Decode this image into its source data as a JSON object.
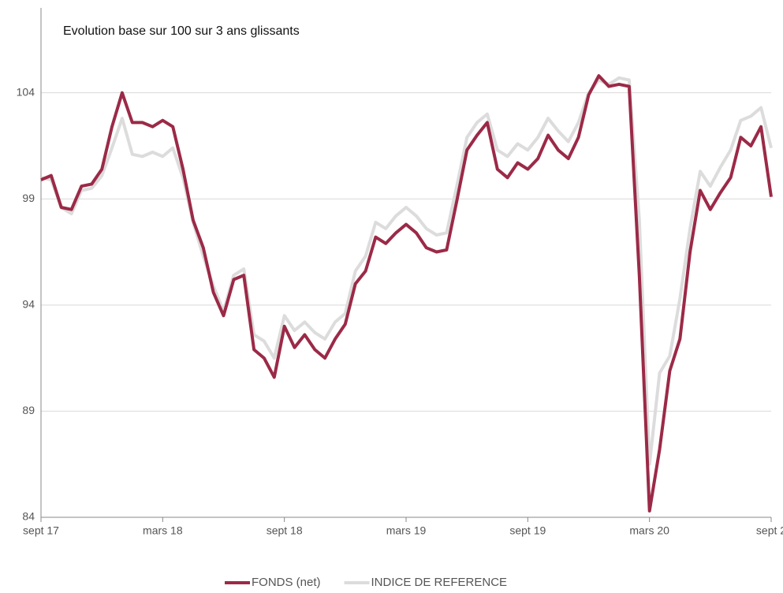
{
  "chart_data": {
    "type": "line",
    "title": "Evolution base sur 100 sur 3 ans glissants",
    "x": [
      0,
      0.5,
      1,
      1.5,
      2,
      2.5,
      3,
      3.5,
      4,
      4.5,
      5,
      5.5,
      6,
      6.5,
      7,
      7.5,
      8,
      8.5,
      9,
      9.5,
      10,
      10.5,
      11,
      11.5,
      12,
      12.5,
      13,
      13.5,
      14,
      14.5,
      15,
      15.5,
      16,
      16.5,
      17,
      17.5,
      18,
      18.5,
      19,
      19.5,
      20,
      20.5,
      21,
      21.5,
      22,
      22.5,
      23,
      23.5,
      24,
      24.5,
      25,
      25.5,
      26,
      26.5,
      27,
      27.5,
      28,
      28.5,
      29,
      29.5,
      30,
      30.5,
      31,
      31.5,
      32,
      32.5,
      33,
      33.5,
      34,
      34.5,
      35,
      35.5,
      36
    ],
    "xlim": [
      0,
      36
    ],
    "xticks": [
      {
        "value": 0,
        "label": "sept 17"
      },
      {
        "value": 6,
        "label": "mars 18"
      },
      {
        "value": 12,
        "label": "sept 18"
      },
      {
        "value": 18,
        "label": "mars 19"
      },
      {
        "value": 24,
        "label": "sept 19"
      },
      {
        "value": 30,
        "label": "mars 20"
      },
      {
        "value": 36,
        "label": "sept 2"
      }
    ],
    "ylim": [
      84,
      108
    ],
    "yticks": [
      84,
      89,
      94,
      99,
      104
    ],
    "grid": true,
    "legend": "bottom",
    "series": [
      {
        "name": "INDICE DE REFERENCE",
        "color": "#dcdcdc",
        "values": [
          100.0,
          99.9,
          98.6,
          98.3,
          99.4,
          99.5,
          100.1,
          101.4,
          102.8,
          101.1,
          101.0,
          101.2,
          101.0,
          101.4,
          100.0,
          97.9,
          96.3,
          94.9,
          93.7,
          95.4,
          95.7,
          92.6,
          92.3,
          91.5,
          93.5,
          92.8,
          93.2,
          92.7,
          92.4,
          93.2,
          93.6,
          95.6,
          96.3,
          97.9,
          97.6,
          98.2,
          98.6,
          98.2,
          97.6,
          97.3,
          97.4,
          99.6,
          101.9,
          102.6,
          103.0,
          101.3,
          101.0,
          101.6,
          101.3,
          101.9,
          102.8,
          102.2,
          101.7,
          102.6,
          104.0,
          104.6,
          104.4,
          104.7,
          104.6,
          98.0,
          86.5,
          90.8,
          91.6,
          94.3,
          97.6,
          100.3,
          99.6,
          100.5,
          101.3,
          102.7,
          102.9,
          103.3,
          101.4
        ]
      },
      {
        "name": "FONDS (net)",
        "color": "#9b2a47",
        "values": [
          99.9,
          100.1,
          98.6,
          98.5,
          99.6,
          99.7,
          100.4,
          102.4,
          104.0,
          102.6,
          102.6,
          102.4,
          102.7,
          102.4,
          100.4,
          98.0,
          96.7,
          94.6,
          93.5,
          95.2,
          95.4,
          91.9,
          91.5,
          90.6,
          93.0,
          92.0,
          92.6,
          91.9,
          91.5,
          92.4,
          93.1,
          95.0,
          95.6,
          97.2,
          96.9,
          97.4,
          97.8,
          97.4,
          96.7,
          96.5,
          96.6,
          98.9,
          101.3,
          102.0,
          102.6,
          100.4,
          100.0,
          100.7,
          100.4,
          100.9,
          102.0,
          101.3,
          100.9,
          101.9,
          103.9,
          104.8,
          104.3,
          104.4,
          104.3,
          95.4,
          84.3,
          87.2,
          90.9,
          92.4,
          96.5,
          99.4,
          98.5,
          99.3,
          100.0,
          101.9,
          101.5,
          102.4,
          99.1
        ]
      }
    ]
  }
}
